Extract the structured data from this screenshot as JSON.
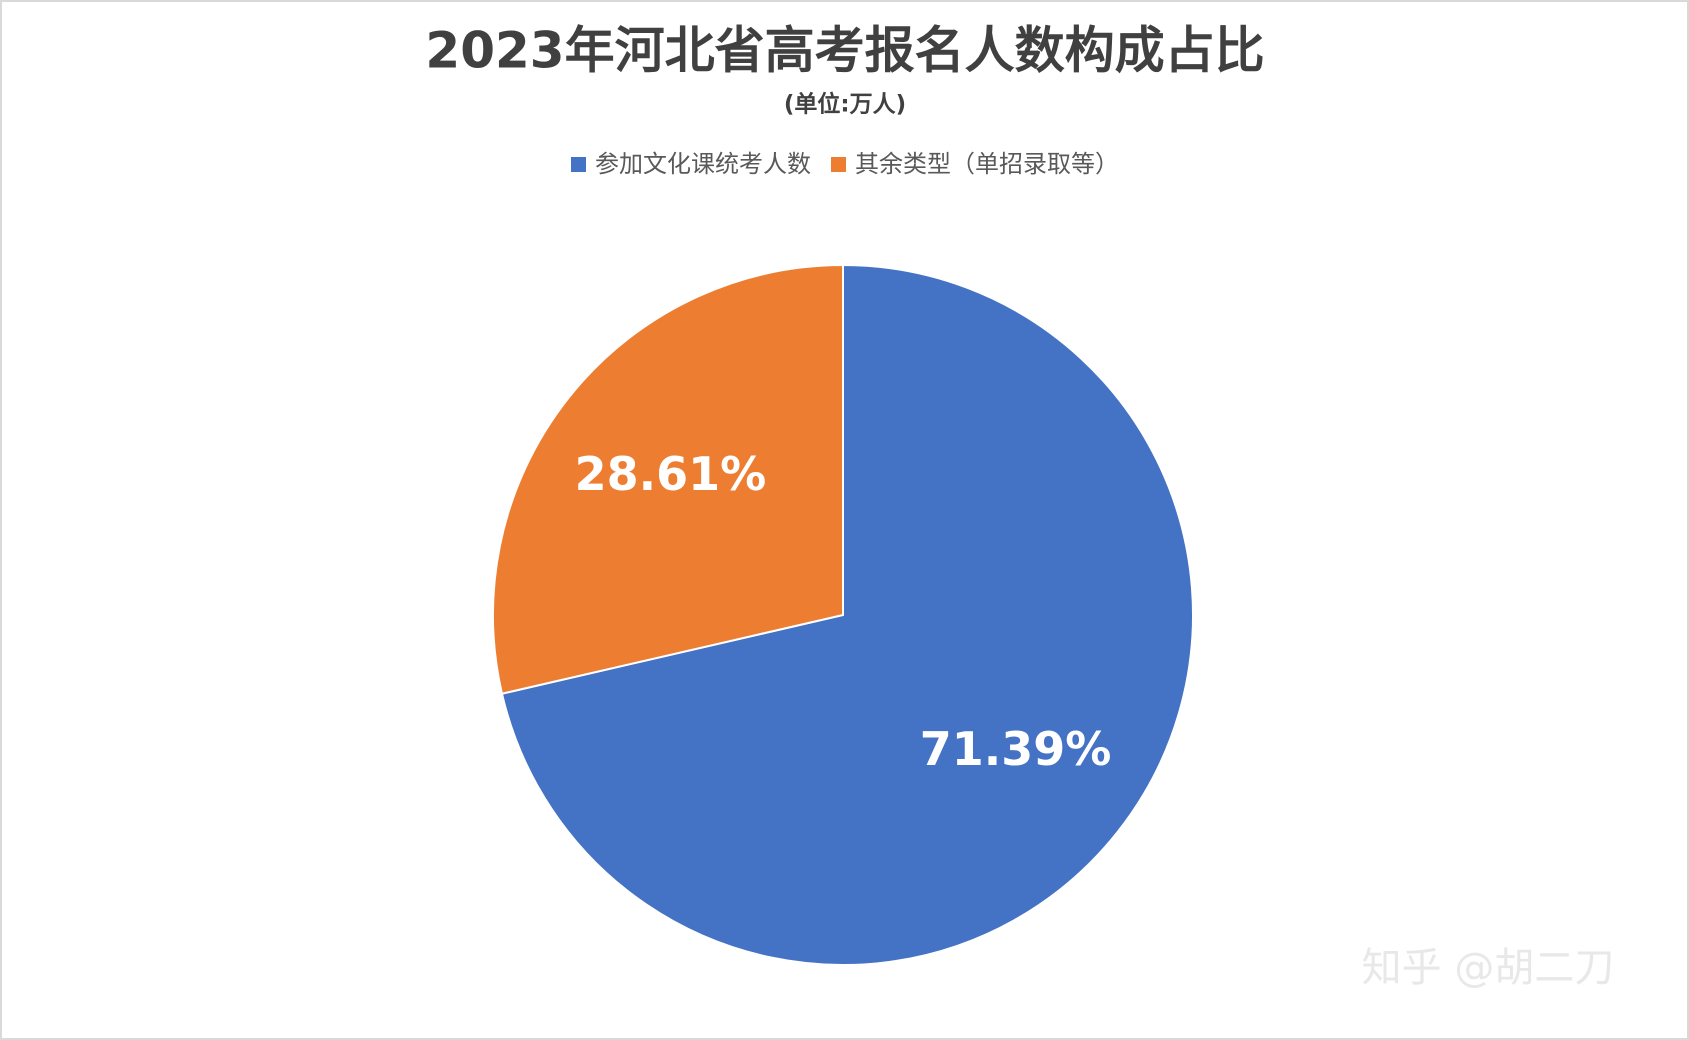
{
  "chart_data": {
    "type": "pie",
    "title": "2023年河北省高考报名人数构成占比",
    "subtitle": "(单位:万人)",
    "categories": [
      "参加文化课统考人数",
      "其余类型（单招录取等）"
    ],
    "values": [
      71.39,
      28.61
    ],
    "value_labels": [
      "71.39%",
      "28.61%"
    ],
    "colors": [
      "#4472c4",
      "#ed7d31"
    ],
    "legend": "top"
  },
  "watermark": "知乎 @胡二刀"
}
